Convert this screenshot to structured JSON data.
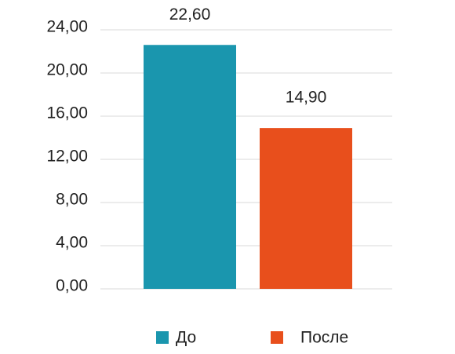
{
  "chart_data": {
    "type": "bar",
    "categories": [
      null
    ],
    "series": [
      {
        "name": "До",
        "color": "#1a96ae",
        "values": [
          22.6
        ],
        "value_labels": [
          "22,60"
        ]
      },
      {
        "name": "После",
        "color": "#e84f1c",
        "values": [
          14.9
        ],
        "value_labels": [
          "14,90"
        ]
      }
    ],
    "ylim": [
      0,
      24
    ],
    "yticks": [
      {
        "value": 0,
        "label": "0,00"
      },
      {
        "value": 4,
        "label": "4,00"
      },
      {
        "value": 8,
        "label": "8,00"
      },
      {
        "value": 12,
        "label": "12,00"
      },
      {
        "value": 16,
        "label": "16,00"
      },
      {
        "value": 20,
        "label": "20,00"
      },
      {
        "value": 24,
        "label": "24,00"
      }
    ],
    "grid": true,
    "legend": "bottom"
  }
}
